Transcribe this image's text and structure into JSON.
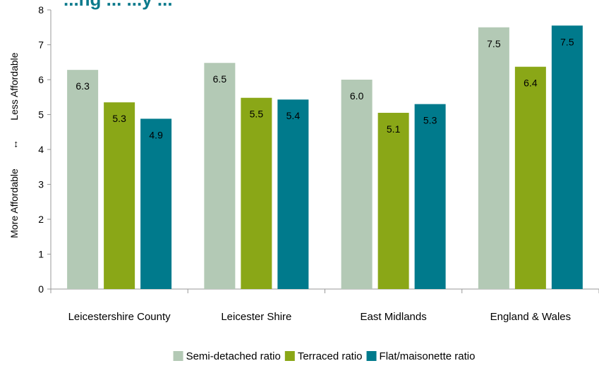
{
  "chart_data": {
    "type": "bar",
    "title": "...ng ... ...y ...",
    "ylabel_left": "More Affordable",
    "ylabel_arrow": "↔",
    "ylabel_right": "Less Affordable",
    "xlabel": "",
    "ylim": [
      0,
      8
    ],
    "yticks": [
      "0",
      "1",
      "2",
      "3",
      "4",
      "5",
      "6",
      "7",
      "8"
    ],
    "grid": false,
    "legend_position": "bottom",
    "categories": [
      "Leicestershire County",
      "Leicester Shire",
      "East Midlands",
      "England & Wales"
    ],
    "series": [
      {
        "name": "Semi-detached ratio",
        "color": "#b3c9b5",
        "values": [
          6.28,
          6.48,
          6.0,
          7.5
        ],
        "labels": [
          "6.3",
          "6.5",
          "6.0",
          "7.5"
        ]
      },
      {
        "name": "Terraced ratio",
        "color": "#8aa717",
        "values": [
          5.35,
          5.48,
          5.05,
          6.37
        ],
        "labels": [
          "5.3",
          "5.5",
          "5.1",
          "6.4"
        ]
      },
      {
        "name": "Flat/maisonette ratio",
        "color": "#007a8c",
        "values": [
          4.88,
          5.43,
          5.3,
          7.55
        ],
        "labels": [
          "4.9",
          "5.4",
          "5.3",
          "7.5"
        ]
      }
    ]
  }
}
